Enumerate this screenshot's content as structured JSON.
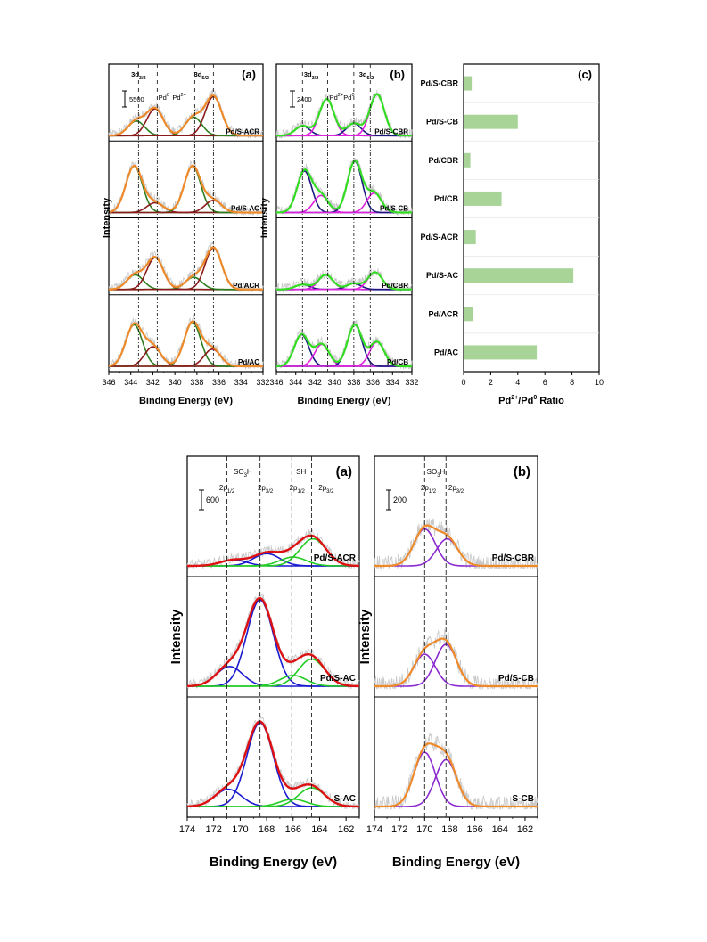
{
  "figure": {
    "colors": {
      "raw": "#c8c8c8",
      "fit_orange": "#ee8a2a",
      "pd0_darkred": "#8b1a1a",
      "pd2_darkgreen": "#2d7d1e",
      "env_lime": "#33dd22",
      "pd0_navy": "#1a1a80",
      "pd2_magenta": "#dd22dd",
      "s_red": "#dd1111",
      "s_blue": "#1a1ad0",
      "s_green": "#22cc22",
      "s_purple": "#8a2ad0",
      "bar_green": "#a8d498"
    }
  },
  "chart_data": [
    {
      "id": "pd3d_a",
      "type": "line",
      "panel_label": "(a)",
      "xlabel": "Binding Energy (eV)",
      "ylabel": "Intensity",
      "xlim": [
        346,
        332
      ],
      "xticks": [
        "346",
        "344",
        "342",
        "340",
        "338",
        "336",
        "334",
        "332"
      ],
      "scale_bar": "5500",
      "ref_lines": [
        343.3,
        341.6,
        338.2,
        336.5
      ],
      "annotations": [
        {
          "main": "3d",
          "sub": "3/2",
          "x": 343.3
        },
        {
          "main": "Pd",
          "sup": "0",
          "x": 341.0
        },
        {
          "main": "Pd",
          "sup": "2+",
          "x": 339.6
        },
        {
          "main": "3d",
          "sub": "5/2",
          "x": 337.6
        }
      ],
      "series": [
        {
          "name": "Pd/S-ACR",
          "components": [
            {
              "center": 343.5,
              "height": 0.3,
              "color": "pd2_darkgreen"
            },
            {
              "center": 341.8,
              "height": 0.55,
              "color": "pd0_darkred"
            },
            {
              "center": 338.3,
              "height": 0.38,
              "color": "pd2_darkgreen"
            },
            {
              "center": 336.5,
              "height": 0.8,
              "color": "pd0_darkred"
            }
          ]
        },
        {
          "name": "Pd/S-AC",
          "components": [
            {
              "center": 343.7,
              "height": 0.95,
              "color": "pd2_darkgreen"
            },
            {
              "center": 341.8,
              "height": 0.2,
              "color": "pd0_darkred"
            },
            {
              "center": 338.4,
              "height": 0.95,
              "color": "pd2_darkgreen"
            },
            {
              "center": 336.5,
              "height": 0.25,
              "color": "pd0_darkred"
            }
          ]
        },
        {
          "name": "Pd/ACR",
          "components": [
            {
              "center": 343.6,
              "height": 0.3,
              "color": "pd2_darkgreen"
            },
            {
              "center": 341.8,
              "height": 0.65,
              "color": "pd0_darkred"
            },
            {
              "center": 338.3,
              "height": 0.25,
              "color": "pd2_darkgreen"
            },
            {
              "center": 336.5,
              "height": 0.85,
              "color": "pd0_darkred"
            }
          ]
        },
        {
          "name": "Pd/AC",
          "components": [
            {
              "center": 343.7,
              "height": 0.85,
              "color": "pd2_darkgreen"
            },
            {
              "center": 342.0,
              "height": 0.4,
              "color": "pd0_darkred"
            },
            {
              "center": 338.4,
              "height": 0.9,
              "color": "pd2_darkgreen"
            },
            {
              "center": 336.6,
              "height": 0.35,
              "color": "pd0_darkred"
            }
          ]
        }
      ]
    },
    {
      "id": "pd3d_b",
      "type": "line",
      "panel_label": "(b)",
      "xlabel": "Binding Energy (eV)",
      "ylabel": "Intensity",
      "xlim": [
        346,
        332
      ],
      "xticks": [
        "346",
        "344",
        "342",
        "340",
        "338",
        "336",
        "334",
        "332"
      ],
      "scale_bar": "2400",
      "ref_lines": [
        343.3,
        340.7,
        338.0,
        336.3
      ],
      "annotations": [
        {
          "main": "3d",
          "sub": "3/2",
          "x": 342.4
        },
        {
          "main": "Pd",
          "sup": "2+",
          "x": 339.8
        },
        {
          "main": "Pd",
          "sup": "0",
          "x": 338.5
        },
        {
          "main": "3d",
          "sub": "5/2",
          "x": 336.7
        }
      ],
      "series": [
        {
          "name": "Pd/S-CBR",
          "components": [
            {
              "center": 343.3,
              "height": 0.2,
              "color": "pd0_navy"
            },
            {
              "center": 340.8,
              "height": 0.75,
              "color": "pd2_magenta"
            },
            {
              "center": 338.0,
              "height": 0.25,
              "color": "pd0_navy"
            },
            {
              "center": 335.6,
              "height": 0.85,
              "color": "pd2_magenta"
            }
          ]
        },
        {
          "name": "Pd/S-CB",
          "components": [
            {
              "center": 343.1,
              "height": 0.85,
              "color": "pd0_navy"
            },
            {
              "center": 341.4,
              "height": 0.35,
              "color": "pd2_magenta"
            },
            {
              "center": 337.9,
              "height": 1.05,
              "color": "pd0_navy"
            },
            {
              "center": 335.9,
              "height": 0.4,
              "color": "pd2_magenta"
            }
          ]
        },
        {
          "name": "Pd/CBR",
          "components": [
            {
              "center": 343.3,
              "height": 0.1,
              "color": "pd0_navy"
            },
            {
              "center": 340.9,
              "height": 0.3,
              "color": "pd2_magenta"
            },
            {
              "center": 338.0,
              "height": 0.12,
              "color": "pd0_navy"
            },
            {
              "center": 335.8,
              "height": 0.35,
              "color": "pd2_magenta"
            }
          ]
        },
        {
          "name": "Pd/CB",
          "components": [
            {
              "center": 343.4,
              "height": 0.65,
              "color": "pd0_navy"
            },
            {
              "center": 341.3,
              "height": 0.45,
              "color": "pd2_magenta"
            },
            {
              "center": 337.9,
              "height": 0.85,
              "color": "pd0_navy"
            },
            {
              "center": 335.6,
              "height": 0.5,
              "color": "pd2_magenta"
            }
          ]
        }
      ]
    },
    {
      "id": "ratio_c",
      "type": "bar",
      "orientation": "horizontal",
      "panel_label": "(c)",
      "xlabel_main": "Pd",
      "xlabel_sup1": "2+",
      "xlabel_mid": "/Pd",
      "xlabel_sup2": "0",
      "xlabel_tail": " Ratio",
      "xlim": [
        0,
        10
      ],
      "xticks": [
        "0",
        "2",
        "4",
        "6",
        "8",
        "10"
      ],
      "categories": [
        "Pd/S-CBR",
        "Pd/S-CB",
        "Pd/CBR",
        "Pd/CB",
        "Pd/S-ACR",
        "Pd/S-AC",
        "Pd/ACR",
        "Pd/AC"
      ],
      "values": [
        0.6,
        4.0,
        0.5,
        2.8,
        0.9,
        8.1,
        0.7,
        5.4
      ]
    },
    {
      "id": "s2p_a",
      "type": "line",
      "panel_label": "(a)",
      "xlabel": "Binding Energy (eV)",
      "ylabel": "Intensity",
      "xlim": [
        174,
        161
      ],
      "xticks": [
        "174",
        "172",
        "170",
        "168",
        "166",
        "164",
        "162"
      ],
      "scale_bar": "600",
      "ref_lines": [
        171.0,
        168.5,
        166.1,
        164.6
      ],
      "annotations": [
        {
          "main": "SO",
          "sub": "3",
          "tail": "H",
          "x": 169.8,
          "row": 0
        },
        {
          "main": "SH",
          "x": 165.4,
          "row": 0
        },
        {
          "main": "2p",
          "sub": "1/2",
          "x": 171.0,
          "row": 1
        },
        {
          "main": "2p",
          "sub": "3/2",
          "x": 168.1,
          "row": 1
        },
        {
          "main": "2p",
          "sub": "1/2",
          "x": 165.7,
          "row": 1
        },
        {
          "main": "2p",
          "sub": "3/2",
          "x": 163.5,
          "row": 1
        }
      ],
      "series": [
        {
          "name": "Pd/S-ACR",
          "components": [
            {
              "center": 170.5,
              "height": 0.12,
              "color": "s_blue"
            },
            {
              "center": 168.0,
              "height": 0.25,
              "color": "s_blue"
            },
            {
              "center": 166.0,
              "height": 0.18,
              "color": "s_green"
            },
            {
              "center": 164.5,
              "height": 0.55,
              "color": "s_green"
            }
          ]
        },
        {
          "name": "Pd/S-AC",
          "components": [
            {
              "center": 170.8,
              "height": 0.4,
              "color": "s_blue"
            },
            {
              "center": 168.5,
              "height": 1.75,
              "color": "s_blue"
            },
            {
              "center": 166.0,
              "height": 0.22,
              "color": "s_green"
            },
            {
              "center": 164.6,
              "height": 0.55,
              "color": "s_green"
            }
          ]
        },
        {
          "name": "S-AC",
          "components": [
            {
              "center": 170.9,
              "height": 0.35,
              "color": "s_blue"
            },
            {
              "center": 168.5,
              "height": 1.7,
              "color": "s_blue"
            },
            {
              "center": 166.0,
              "height": 0.15,
              "color": "s_green"
            },
            {
              "center": 164.6,
              "height": 0.38,
              "color": "s_green"
            }
          ]
        }
      ]
    },
    {
      "id": "s2p_b",
      "type": "line",
      "panel_label": "(b)",
      "xlabel": "Binding Energy (eV)",
      "ylabel": "Intensity",
      "xlim": [
        174,
        161
      ],
      "xticks": [
        "174",
        "172",
        "170",
        "168",
        "166",
        "164",
        "162"
      ],
      "scale_bar": "200",
      "ref_lines": [
        170.0,
        168.3
      ],
      "annotations": [
        {
          "main": "SO",
          "sub": "3",
          "tail": "H",
          "x": 169.1,
          "row": 0
        },
        {
          "main": "2p",
          "sub": "1/2",
          "x": 169.7,
          "row": 1
        },
        {
          "main": "2p",
          "sub": "3/2",
          "x": 167.5,
          "row": 1
        }
      ],
      "series": [
        {
          "name": "Pd/S-CBR",
          "components": [
            {
              "center": 170.0,
              "height": 0.75,
              "color": "s_purple"
            },
            {
              "center": 168.2,
              "height": 0.55,
              "color": "s_purple"
            }
          ]
        },
        {
          "name": "Pd/S-CB",
          "components": [
            {
              "center": 170.0,
              "height": 0.65,
              "color": "s_purple"
            },
            {
              "center": 168.3,
              "height": 0.85,
              "color": "s_purple"
            }
          ]
        },
        {
          "name": "S-CB",
          "components": [
            {
              "center": 170.0,
              "height": 1.1,
              "color": "s_purple"
            },
            {
              "center": 168.3,
              "height": 0.95,
              "color": "s_purple"
            }
          ]
        }
      ]
    }
  ]
}
